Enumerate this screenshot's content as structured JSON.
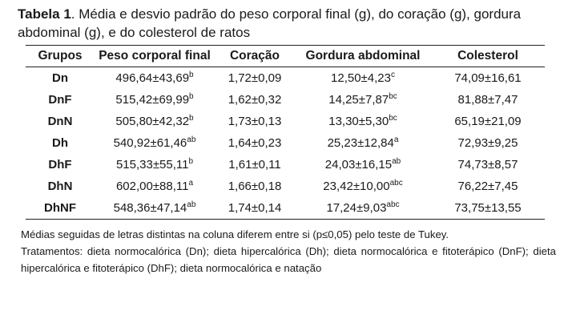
{
  "caption": {
    "label": "Tabela 1",
    "text": ". Média e desvio padrão do peso corporal final (g), do coração (g), gordura abdominal  (g), e do colesterol de ratos"
  },
  "table": {
    "headers": {
      "grupos": "Grupos",
      "peso": "Peso corporal final",
      "coracao": "Coração",
      "gordura": "Gordura abdominal",
      "colesterol": "Colesterol"
    },
    "rows": [
      {
        "grupo": "Dn",
        "peso": "496,64±43,69",
        "peso_sup": "b",
        "coracao": "1,72±0,09",
        "gordura": "12,50±4,23",
        "gordura_sup": "c",
        "colesterol": "74,09±16,61"
      },
      {
        "grupo": "DnF",
        "peso": "515,42±69,99",
        "peso_sup": "b",
        "coracao": "1,62±0,32",
        "gordura": "14,25±7,87",
        "gordura_sup": "bc",
        "colesterol": "81,88±7,47"
      },
      {
        "grupo": "DnN",
        "peso": "505,80±42,32",
        "peso_sup": "b",
        "coracao": "1,73±0,13",
        "gordura": "13,30±5,30",
        "gordura_sup": "bc",
        "colesterol": "65,19±21,09"
      },
      {
        "grupo": "Dh",
        "peso": "540,92±61,46",
        "peso_sup": "ab",
        "coracao": "1,64±0,23",
        "gordura": "25,23±12,84",
        "gordura_sup": "a",
        "colesterol": "72,93±9,25"
      },
      {
        "grupo": "DhF",
        "peso": "515,33±55,11",
        "peso_sup": "b",
        "coracao": "1,61±0,11",
        "gordura": "24,03±16,15",
        "gordura_sup": "ab",
        "colesterol": "74,73±8,57"
      },
      {
        "grupo": "DhN",
        "peso": "602,00±88,11",
        "peso_sup": "a",
        "coracao": "1,66±0,18",
        "gordura": "23,42±10,00",
        "gordura_sup": "abc",
        "colesterol": "76,22±7,45"
      },
      {
        "grupo": "DhNF",
        "peso": "548,36±47,14",
        "peso_sup": "ab",
        "coracao": "1,74±0,14",
        "gordura": "17,24±9,03",
        "gordura_sup": "abc",
        "colesterol": "73,75±13,55"
      }
    ]
  },
  "footnote": {
    "line1": "Médias seguidas de letras distintas na coluna diferem entre si (p≤0,05) pelo teste de Tukey.",
    "line2": "Tratamentos: dieta normocalórica (Dn); dieta hipercalórica (Dh); dieta normocalórica e fitoterápico (DnF); dieta hipercalórica e fitoterápico (DhF); dieta normocalórica e natação"
  }
}
